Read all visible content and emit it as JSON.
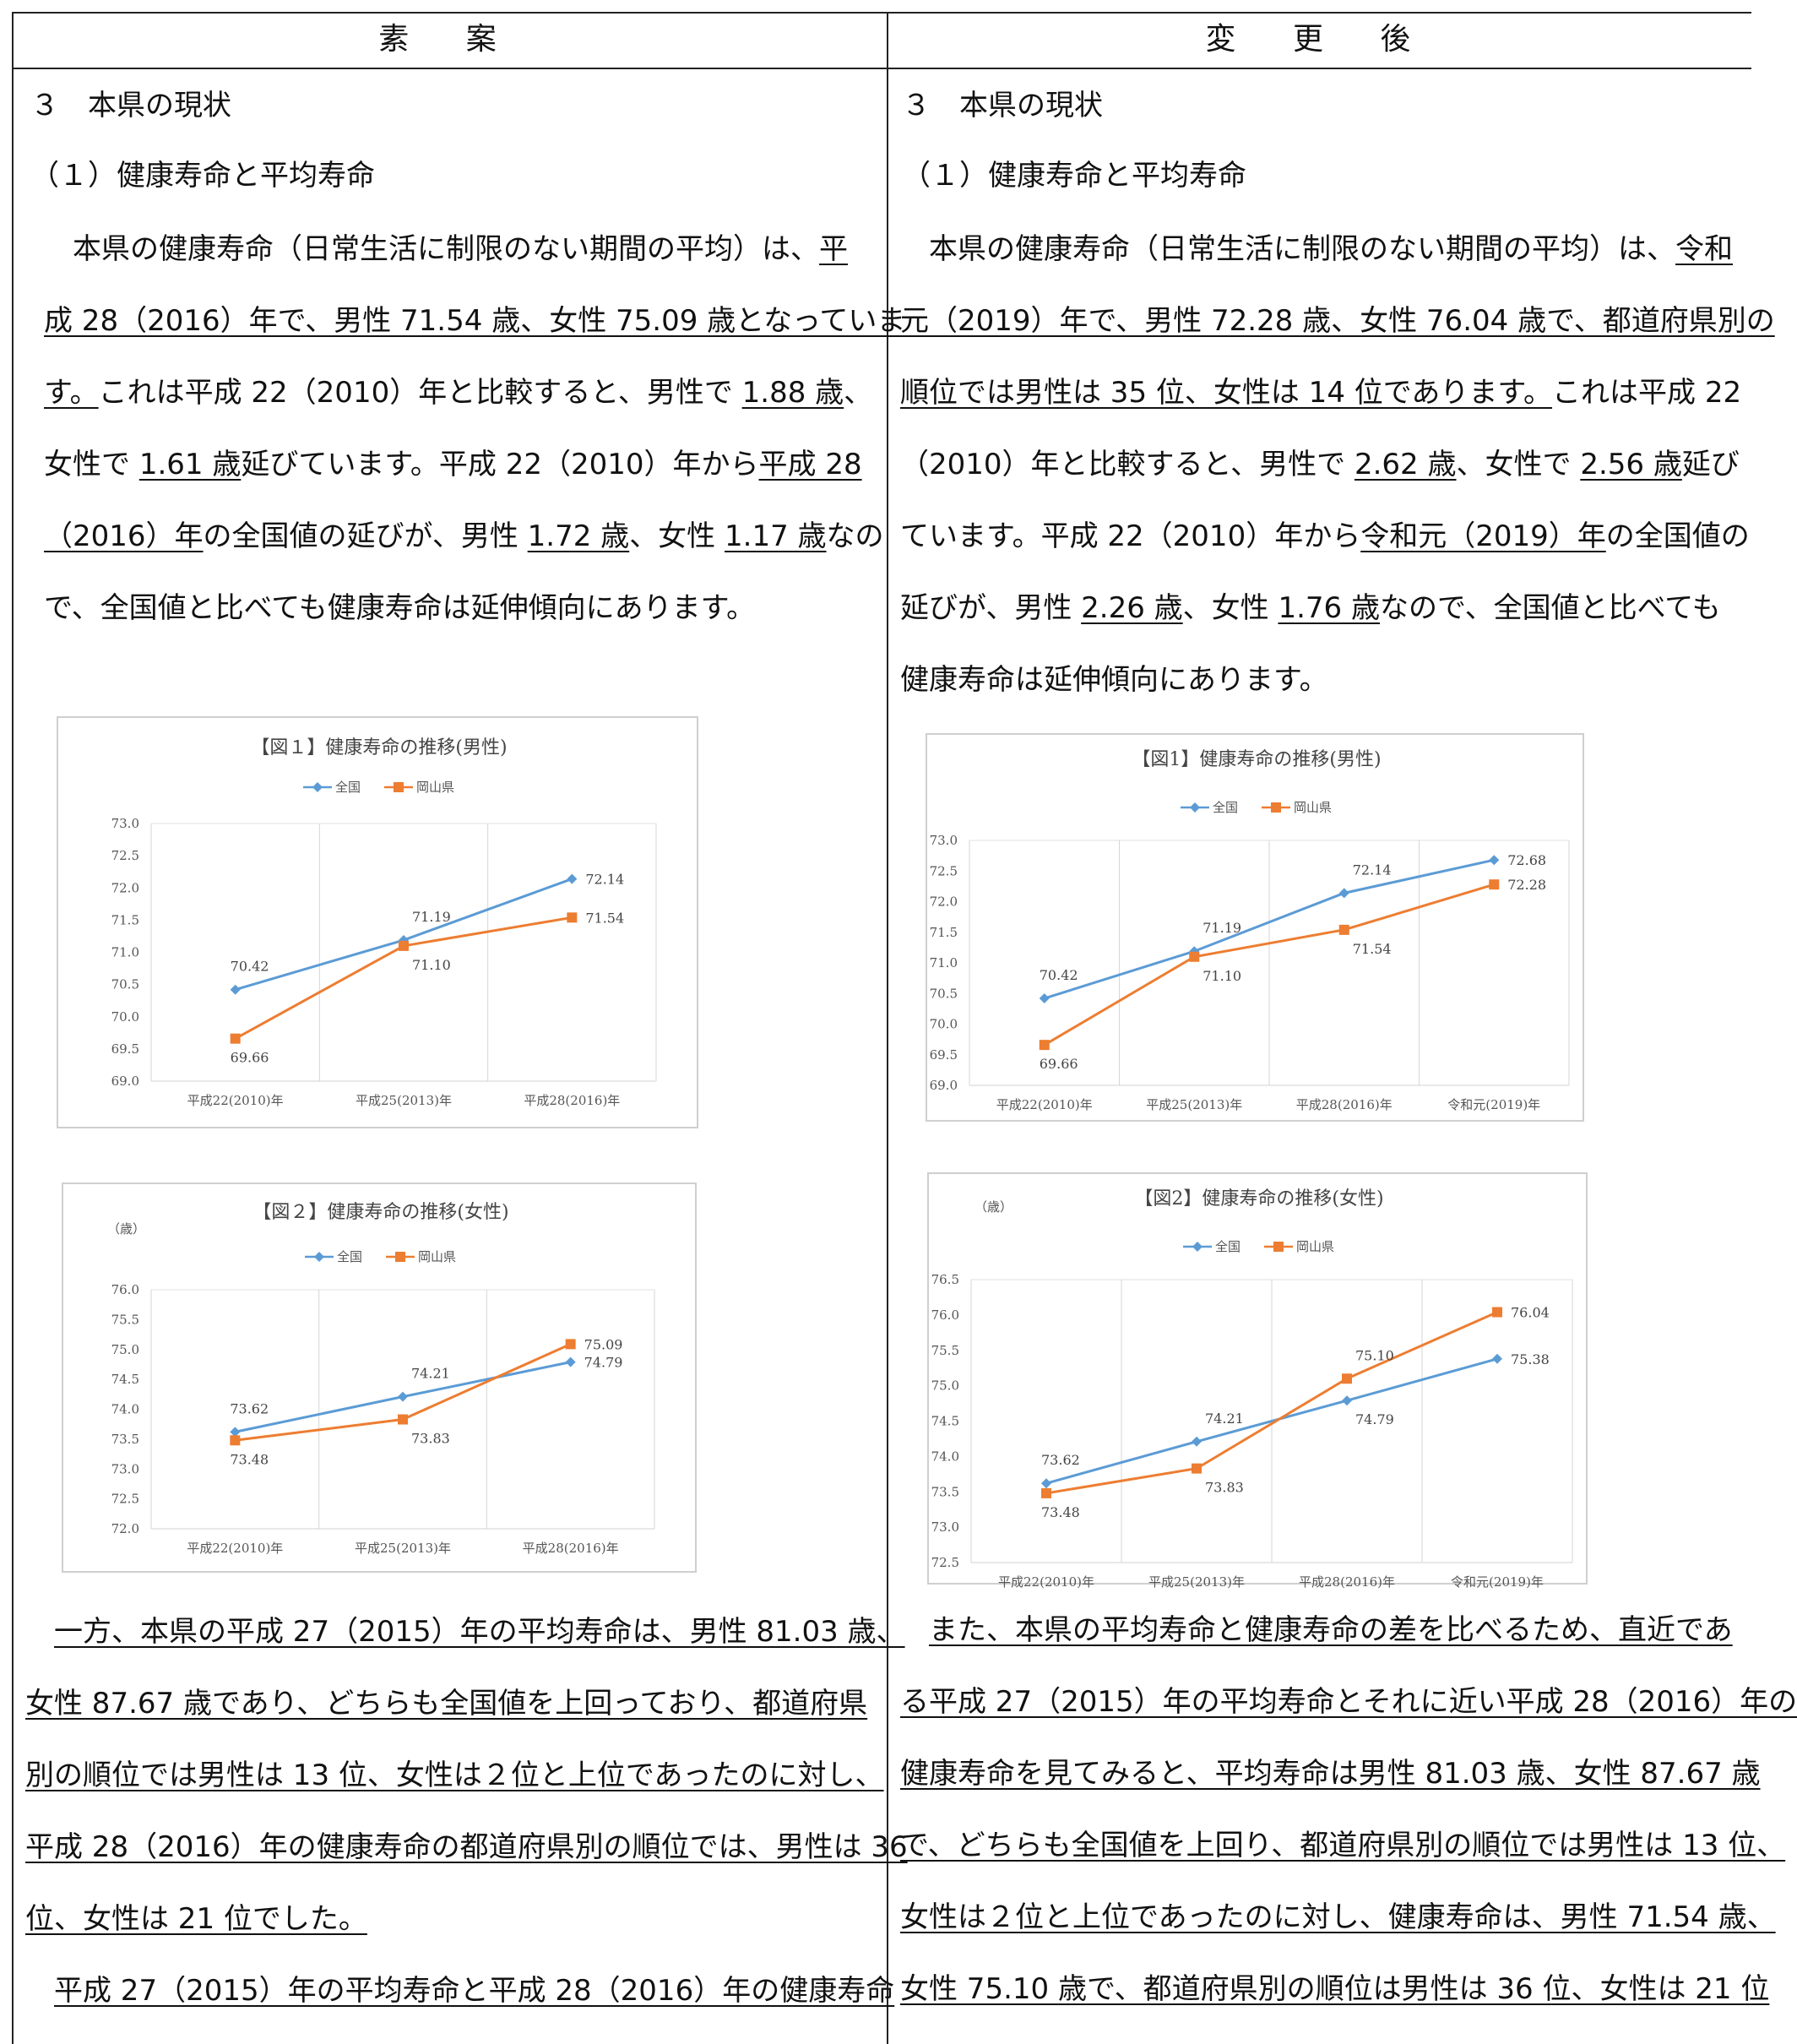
{
  "headers": {
    "left": "素 案",
    "right": "変 更 後"
  },
  "left": {
    "section": "３　本県の現状",
    "subsection": "（１）健康寿命と平均寿命",
    "para1": [
      [
        {
          "t": "　本県の健康寿命（日常生活に制限のない期間の平均）は、"
        },
        {
          "t": "平",
          "u": true
        }
      ],
      [
        {
          "t": "成 28（2016）年で、男性 71.54 歳、女性 75.09 歳となっていま",
          "u": true
        }
      ],
      [
        {
          "t": "す。",
          "u": true
        },
        {
          "t": "これは平成 22（2010）年と比較すると、男性で "
        },
        {
          "t": "1.88 歳",
          "u": true
        },
        {
          "t": "、"
        }
      ],
      [
        {
          "t": "女性で "
        },
        {
          "t": "1.61 歳",
          "u": true
        },
        {
          "t": "延びています。平成 22（2010）年から"
        },
        {
          "t": "平成 28",
          "u": true
        }
      ],
      [
        {
          "t": "（2016）年",
          "u": true
        },
        {
          "t": "の全国値の延びが、男性 "
        },
        {
          "t": "1.72 歳",
          "u": true
        },
        {
          "t": "、女性 "
        },
        {
          "t": "1.17 歳",
          "u": true
        },
        {
          "t": "なの"
        }
      ],
      [
        {
          "t": "で、全国値と比べても健康寿命は延伸傾向にあります。"
        }
      ]
    ],
    "para2": [
      [
        {
          "t": "　"
        },
        {
          "t": "一方、本県の平成 27（2015）年の平均寿命は、男性 81.03 歳、",
          "u": true
        }
      ],
      [
        {
          "t": "女性 87.67 歳であり、どちらも全国値を上回っており、都道府県",
          "u": true
        }
      ],
      [
        {
          "t": "別の順位では男性は 13 位、女性は２位と上位であったのに対し、",
          "u": true
        }
      ],
      [
        {
          "t": "平成 28（2016）年の健康寿命の都道府県別の順位では、男性は 36",
          "u": true
        }
      ],
      [
        {
          "t": "位、女性は 21 位でした。",
          "u": true
        }
      ],
      [
        {
          "t": "　"
        },
        {
          "t": "平成 27（2015）年の平均寿命と平成 28（2016）年の健康寿命",
          "u": true
        }
      ]
    ]
  },
  "right": {
    "section": "３　本県の現状",
    "subsection": "（１）健康寿命と平均寿命",
    "para1": [
      [
        {
          "t": "　本県の健康寿命（日常生活に制限のない期間の平均）は、"
        },
        {
          "t": "令和",
          "u": true
        }
      ],
      [
        {
          "t": "元（2019）年で、男性 72.28 歳、女性 76.04 歳で、都道府県別の",
          "u": true
        }
      ],
      [
        {
          "t": "順位では男性は 35 位、女性は 14 位であります。",
          "u": true
        },
        {
          "t": "これは平成 22"
        }
      ],
      [
        {
          "t": "（2010）年と比較すると、男性で "
        },
        {
          "t": "2.62 歳",
          "u": true
        },
        {
          "t": "、女性で "
        },
        {
          "t": "2.56 歳",
          "u": true
        },
        {
          "t": "延び"
        }
      ],
      [
        {
          "t": "ています。平成 22（2010）年から"
        },
        {
          "t": "令和元（2019）年",
          "u": true
        },
        {
          "t": "の全国値の"
        }
      ],
      [
        {
          "t": "延びが、男性 "
        },
        {
          "t": "2.26 歳",
          "u": true
        },
        {
          "t": "、女性 "
        },
        {
          "t": "1.76 歳",
          "u": true
        },
        {
          "t": "なので、全国値と比べても"
        }
      ],
      [
        {
          "t": "健康寿命は延伸傾向にあります。"
        }
      ]
    ],
    "para2": [
      [
        {
          "t": "　"
        },
        {
          "t": "また、本県の平均寿命と健康寿命の差を比べるため、直近であ",
          "u": true
        }
      ],
      [
        {
          "t": "る平成 27（2015）年の平均寿命とそれに近い平成 28（2016）年の",
          "u": true
        }
      ],
      [
        {
          "t": "健康寿命を見てみると、平均寿命は男性 81.03 歳、女性 87.67 歳",
          "u": true
        }
      ],
      [
        {
          "t": "で、どちらも全国値を上回り、都道府県別の順位では男性は 13 位、",
          "u": true
        }
      ],
      [
        {
          "t": "女性は２位と上位であったのに対し、健康寿命は、男性 71.54 歳、",
          "u": true
        }
      ],
      [
        {
          "t": "女性 75.10 歳で、都道府県別の順位は男性は 36 位、女性は 21 位",
          "u": true
        }
      ]
    ]
  },
  "chart_data": [
    {
      "type": "line",
      "title": "【図１】健康寿命の推移(男性)",
      "unit_label": "",
      "categories": [
        "平成22(2010)年",
        "平成25(2013)年",
        "平成28(2016)年"
      ],
      "yticks": [
        "73.0",
        "72.5",
        "72.0",
        "71.5",
        "71.0",
        "70.5",
        "70.0",
        "69.5",
        "69.0"
      ],
      "ylim": [
        69.0,
        73.0
      ],
      "series": [
        {
          "name": "全国",
          "color": "#5b9bd5",
          "marker": "diamond",
          "values": [
            70.42,
            71.19,
            72.14
          ],
          "labels": [
            "70.42",
            "71.19",
            "72.14"
          ]
        },
        {
          "name": "岡山県",
          "color": "#ed7d31",
          "marker": "square",
          "values": [
            69.66,
            71.1,
            71.54
          ],
          "labels": [
            "69.66",
            "71.10",
            "71.54"
          ]
        }
      ],
      "legend": "top",
      "grid": "vertical"
    },
    {
      "type": "line",
      "title": "【図２】健康寿命の推移(女性)",
      "unit_label": "（歳）",
      "categories": [
        "平成22(2010)年",
        "平成25(2013)年",
        "平成28(2016)年"
      ],
      "yticks": [
        "76.0",
        "75.5",
        "75.0",
        "74.5",
        "74.0",
        "73.5",
        "73.0",
        "72.5",
        "72.0"
      ],
      "ylim": [
        72.0,
        76.0
      ],
      "series": [
        {
          "name": "全国",
          "color": "#5b9bd5",
          "marker": "diamond",
          "values": [
            73.62,
            74.21,
            74.79
          ],
          "labels": [
            "73.62",
            "74.21",
            "74.79"
          ]
        },
        {
          "name": "岡山県",
          "color": "#ed7d31",
          "marker": "square",
          "values": [
            73.48,
            73.83,
            75.09
          ],
          "labels": [
            "73.48",
            "73.83",
            "75.09"
          ]
        }
      ],
      "legend": "top",
      "grid": "vertical"
    },
    {
      "type": "line",
      "title": "【図1】健康寿命の推移(男性)",
      "unit_label": "",
      "categories": [
        "平成22(2010)年",
        "平成25(2013)年",
        "平成28(2016)年",
        "令和元(2019)年"
      ],
      "yticks": [
        "73.0",
        "72.5",
        "72.0",
        "71.5",
        "71.0",
        "70.5",
        "70.0",
        "69.5",
        "69.0"
      ],
      "ylim": [
        69.0,
        73.0
      ],
      "series": [
        {
          "name": "全国",
          "color": "#5b9bd5",
          "marker": "diamond",
          "values": [
            70.42,
            71.19,
            72.14,
            72.68
          ],
          "labels": [
            "70.42",
            "71.19",
            "72.14",
            "72.68"
          ]
        },
        {
          "name": "岡山県",
          "color": "#ed7d31",
          "marker": "square",
          "values": [
            69.66,
            71.1,
            71.54,
            72.28
          ],
          "labels": [
            "69.66",
            "71.10",
            "71.54",
            "72.28"
          ]
        }
      ],
      "legend": "top",
      "grid": "vertical"
    },
    {
      "type": "line",
      "title": "【図2】健康寿命の推移(女性)",
      "unit_label": "（歳）",
      "categories": [
        "平成22(2010)年",
        "平成25(2013)年",
        "平成28(2016)年",
        "令和元(2019)年"
      ],
      "yticks": [
        "76.5",
        "76.0",
        "75.5",
        "75.0",
        "74.5",
        "74.0",
        "73.5",
        "73.0",
        "72.5"
      ],
      "ylim": [
        72.5,
        76.5
      ],
      "series": [
        {
          "name": "全国",
          "color": "#5b9bd5",
          "marker": "diamond",
          "values": [
            73.62,
            74.21,
            74.79,
            75.38
          ],
          "labels": [
            "73.62",
            "74.21",
            "74.79",
            "75.38"
          ]
        },
        {
          "name": "岡山県",
          "color": "#ed7d31",
          "marker": "square",
          "values": [
            73.48,
            73.83,
            75.1,
            76.04
          ],
          "labels": [
            "73.48",
            "73.83",
            "75.10",
            "76.04"
          ]
        }
      ],
      "legend": "top",
      "grid": "vertical"
    }
  ]
}
